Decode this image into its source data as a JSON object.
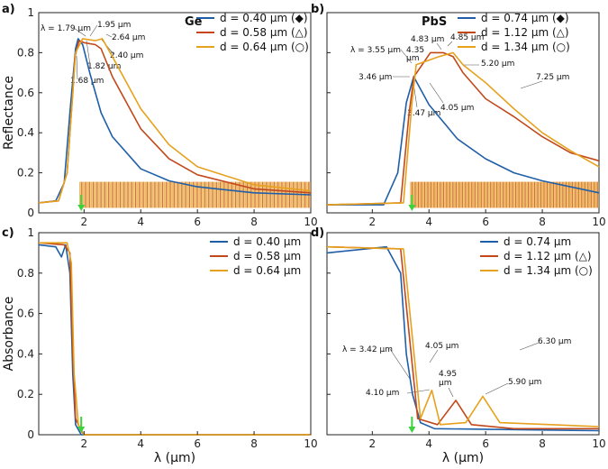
{
  "colors": {
    "blue": "#1f5fa8",
    "red": "#c2481a",
    "gold": "#e6a11d",
    "green": "#3cd23c"
  },
  "chart_data": [
    {
      "type": "line",
      "panel": "a)",
      "title": "Ge",
      "xlabel": "",
      "ylabel": "Reflectance",
      "xlim": [
        0.4,
        10
      ],
      "ylim": [
        0,
        1
      ],
      "xticks": [
        "2",
        "4",
        "6",
        "8",
        "10"
      ],
      "yticks": [
        "0",
        "0.2",
        "0.4",
        "0.6",
        "0.8",
        "1"
      ],
      "series": [
        {
          "name": "d = 0.40 μm (◆)",
          "color": "blue",
          "points": [
            [
              0.4,
              0.05
            ],
            [
              1.0,
              0.06
            ],
            [
              1.3,
              0.15
            ],
            [
              1.5,
              0.5
            ],
            [
              1.7,
              0.82
            ],
            [
              1.79,
              0.87
            ],
            [
              1.95,
              0.84
            ],
            [
              2.2,
              0.7
            ],
            [
              2.6,
              0.5
            ],
            [
              3.0,
              0.38
            ],
            [
              4,
              0.22
            ],
            [
              5,
              0.16
            ],
            [
              6,
              0.13
            ],
            [
              8,
              0.1
            ],
            [
              10,
              0.09
            ]
          ]
        },
        {
          "name": "d = 0.58 μm (△)",
          "color": "red",
          "points": [
            [
              0.4,
              0.05
            ],
            [
              1.1,
              0.06
            ],
            [
              1.4,
              0.2
            ],
            [
              1.6,
              0.6
            ],
            [
              1.68,
              0.78
            ],
            [
              1.82,
              0.86
            ],
            [
              2.0,
              0.85
            ],
            [
              2.4,
              0.84
            ],
            [
              2.6,
              0.82
            ],
            [
              3.0,
              0.68
            ],
            [
              4,
              0.42
            ],
            [
              5,
              0.27
            ],
            [
              6,
              0.19
            ],
            [
              8,
              0.12
            ],
            [
              10,
              0.1
            ]
          ]
        },
        {
          "name": "d = 0.64 μm (○)",
          "color": "gold",
          "points": [
            [
              0.4,
              0.05
            ],
            [
              1.1,
              0.06
            ],
            [
              1.4,
              0.2
            ],
            [
              1.6,
              0.6
            ],
            [
              1.7,
              0.8
            ],
            [
              1.95,
              0.87
            ],
            [
              2.4,
              0.86
            ],
            [
              2.64,
              0.87
            ],
            [
              3.0,
              0.78
            ],
            [
              4,
              0.52
            ],
            [
              5,
              0.34
            ],
            [
              6,
              0.23
            ],
            [
              8,
              0.14
            ],
            [
              10,
              0.11
            ]
          ]
        }
      ],
      "annotations": [
        "λ = 1.79 μm",
        "1.95 μm",
        "2.64 μm",
        "2.40 μm",
        "1.82 μm",
        "1.68 μm"
      ],
      "marker_wavelength": 1.9
    },
    {
      "type": "line",
      "panel": "b)",
      "title": "PbS",
      "xlabel": "",
      "ylabel": "",
      "xlim": [
        0.4,
        10
      ],
      "ylim": [
        0,
        1
      ],
      "xticks": [
        "2",
        "4",
        "6",
        "8",
        "10"
      ],
      "yticks": [
        "0",
        "0.2",
        "0.4",
        "0.6",
        "0.8",
        "1"
      ],
      "series": [
        {
          "name": "d = 0.74 μm (◆)",
          "color": "blue",
          "points": [
            [
              0.4,
              0.04
            ],
            [
              2.4,
              0.04
            ],
            [
              2.9,
              0.2
            ],
            [
              3.2,
              0.55
            ],
            [
              3.46,
              0.68
            ],
            [
              4.0,
              0.54
            ],
            [
              5,
              0.37
            ],
            [
              6,
              0.27
            ],
            [
              7,
              0.2
            ],
            [
              8,
              0.16
            ],
            [
              10,
              0.1
            ]
          ]
        },
        {
          "name": "d = 1.12 μm (△)",
          "color": "red",
          "points": [
            [
              0.4,
              0.04
            ],
            [
              3.0,
              0.05
            ],
            [
              3.3,
              0.5
            ],
            [
              3.47,
              0.68
            ],
            [
              4.05,
              0.8
            ],
            [
              4.5,
              0.8
            ],
            [
              4.85,
              0.78
            ],
            [
              5.2,
              0.7
            ],
            [
              6,
              0.57
            ],
            [
              7,
              0.48
            ],
            [
              8,
              0.38
            ],
            [
              9,
              0.3
            ],
            [
              10,
              0.26
            ]
          ]
        },
        {
          "name": "d = 1.34 μm (○)",
          "color": "gold",
          "points": [
            [
              0.4,
              0.04
            ],
            [
              3.1,
              0.05
            ],
            [
              3.4,
              0.55
            ],
            [
              3.55,
              0.74
            ],
            [
              4.35,
              0.78
            ],
            [
              4.85,
              0.8
            ],
            [
              5.2,
              0.74
            ],
            [
              6,
              0.65
            ],
            [
              7,
              0.52
            ],
            [
              8,
              0.4
            ],
            [
              9,
              0.31
            ],
            [
              10,
              0.23
            ]
          ]
        }
      ],
      "annotations": [
        "λ = 3.55 μm",
        "4.35",
        "μm",
        "4.83 μm",
        "4.85 μm",
        "5.20 μm",
        "3.46 μm",
        "4.05 μm",
        "3.47 μm",
        "7.25 μm"
      ],
      "marker_wavelength": 3.4
    },
    {
      "type": "line",
      "panel": "c)",
      "title": "",
      "xlabel": "λ (μm)",
      "ylabel": "Absorbance",
      "xlim": [
        0.4,
        10
      ],
      "ylim": [
        0,
        1
      ],
      "xticks": [
        "2",
        "4",
        "6",
        "8",
        "10"
      ],
      "yticks": [
        "0",
        "0.2",
        "0.4",
        "0.6",
        "0.8",
        "1"
      ],
      "series": [
        {
          "name": "d = 0.40 μm",
          "color": "blue",
          "points": [
            [
              0.4,
              0.94
            ],
            [
              1.0,
              0.93
            ],
            [
              1.2,
              0.88
            ],
            [
              1.35,
              0.94
            ],
            [
              1.5,
              0.8
            ],
            [
              1.6,
              0.3
            ],
            [
              1.7,
              0.05
            ],
            [
              1.9,
              0.0
            ],
            [
              10,
              0.0
            ]
          ]
        },
        {
          "name": "d = 0.58 μm",
          "color": "red",
          "points": [
            [
              0.4,
              0.95
            ],
            [
              1.3,
              0.94
            ],
            [
              1.5,
              0.9
            ],
            [
              1.6,
              0.4
            ],
            [
              1.7,
              0.08
            ],
            [
              1.9,
              0.02
            ],
            [
              2.0,
              0.0
            ],
            [
              10,
              0.0
            ]
          ]
        },
        {
          "name": "d = 0.64 μm",
          "color": "gold",
          "points": [
            [
              0.4,
              0.95
            ],
            [
              1.4,
              0.95
            ],
            [
              1.55,
              0.85
            ],
            [
              1.65,
              0.3
            ],
            [
              1.8,
              0.05
            ],
            [
              2.0,
              0.0
            ],
            [
              10,
              0.0
            ]
          ]
        }
      ],
      "annotations": [],
      "marker_wavelength": 1.9
    },
    {
      "type": "line",
      "panel": "d)",
      "title": "",
      "xlabel": "λ (μm)",
      "ylabel": "",
      "xlim": [
        0.4,
        10
      ],
      "ylim": [
        0,
        1
      ],
      "xticks": [
        "2",
        "4",
        "6",
        "8",
        "10"
      ],
      "yticks": [
        "0",
        "0.2",
        "0.4",
        "0.6",
        "0.8",
        "1"
      ],
      "series": [
        {
          "name": "d = 0.74 μm",
          "color": "blue",
          "points": [
            [
              0.4,
              0.9
            ],
            [
              2.5,
              0.93
            ],
            [
              3.0,
              0.8
            ],
            [
              3.2,
              0.4
            ],
            [
              3.42,
              0.2
            ],
            [
              3.7,
              0.06
            ],
            [
              4.2,
              0.03
            ],
            [
              10,
              0.02
            ]
          ]
        },
        {
          "name": "d = 1.12 μm (△)",
          "color": "red",
          "points": [
            [
              0.4,
              0.93
            ],
            [
              3.0,
              0.92
            ],
            [
              3.3,
              0.5
            ],
            [
              3.6,
              0.08
            ],
            [
              4.3,
              0.05
            ],
            [
              4.95,
              0.17
            ],
            [
              5.5,
              0.05
            ],
            [
              7,
              0.03
            ],
            [
              10,
              0.03
            ]
          ]
        },
        {
          "name": "d = 1.34 μm (○)",
          "color": "gold",
          "points": [
            [
              0.4,
              0.93
            ],
            [
              3.1,
              0.92
            ],
            [
              3.4,
              0.5
            ],
            [
              3.7,
              0.08
            ],
            [
              4.1,
              0.22
            ],
            [
              4.4,
              0.05
            ],
            [
              5.3,
              0.06
            ],
            [
              5.9,
              0.19
            ],
            [
              6.5,
              0.06
            ],
            [
              10,
              0.04
            ]
          ]
        }
      ],
      "annotations": [
        "λ = 3.42 μm",
        "4.05 μm",
        "6.30 μm",
        "4.95",
        "μm",
        "4.10 μm",
        "5.90 μm"
      ],
      "marker_wavelength": 3.4
    }
  ]
}
